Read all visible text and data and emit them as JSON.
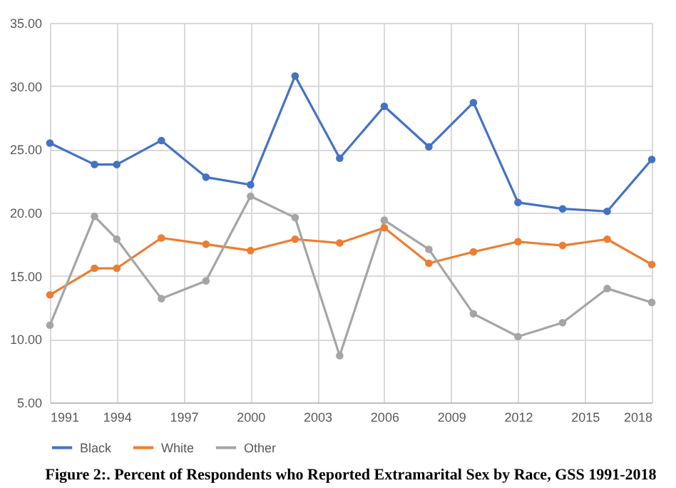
{
  "chart_data": {
    "type": "line",
    "title": "Figure 2:. Percent of Respondents who Reported Extramarital Sex by Race, GSS 1991-2018",
    "x": [
      1991,
      1993,
      1994,
      1996,
      1998,
      2000,
      2002,
      2004,
      2006,
      2008,
      2010,
      2012,
      2014,
      2016,
      2018
    ],
    "series": [
      {
        "name": "Black",
        "color": "#4472c4",
        "values": [
          25.5,
          23.8,
          23.8,
          25.7,
          22.8,
          22.2,
          30.8,
          24.3,
          28.4,
          25.2,
          28.7,
          20.8,
          20.3,
          20.1,
          24.2
        ]
      },
      {
        "name": "White",
        "color": "#ed7d31",
        "values": [
          13.5,
          15.6,
          15.6,
          18.0,
          17.5,
          17.0,
          17.9,
          17.6,
          18.8,
          16.0,
          16.9,
          17.7,
          17.4,
          17.9,
          15.9
        ]
      },
      {
        "name": "Other",
        "color": "#a5a5a5",
        "values": [
          11.1,
          19.7,
          17.9,
          13.2,
          14.6,
          21.3,
          19.6,
          8.7,
          19.4,
          17.1,
          12.0,
          10.2,
          11.3,
          14.0,
          12.9
        ]
      }
    ],
    "xlim": [
      1991,
      2018
    ],
    "xticks": [
      1991,
      1994,
      1997,
      2000,
      2003,
      2006,
      2009,
      2012,
      2015,
      2018
    ],
    "ylim": [
      5,
      35
    ],
    "yticks": [
      {
        "value": 5,
        "label": "5.00"
      },
      {
        "value": 10,
        "label": "10.00"
      },
      {
        "value": 15,
        "label": "15.00"
      },
      {
        "value": 20,
        "label": "20.00"
      },
      {
        "value": 25,
        "label": "25.00"
      },
      {
        "value": 30,
        "label": "30.00"
      },
      {
        "value": 35,
        "label": "35.00"
      }
    ],
    "grid": true,
    "legend": "bottom",
    "marker": "circle",
    "line_style": "solid"
  }
}
